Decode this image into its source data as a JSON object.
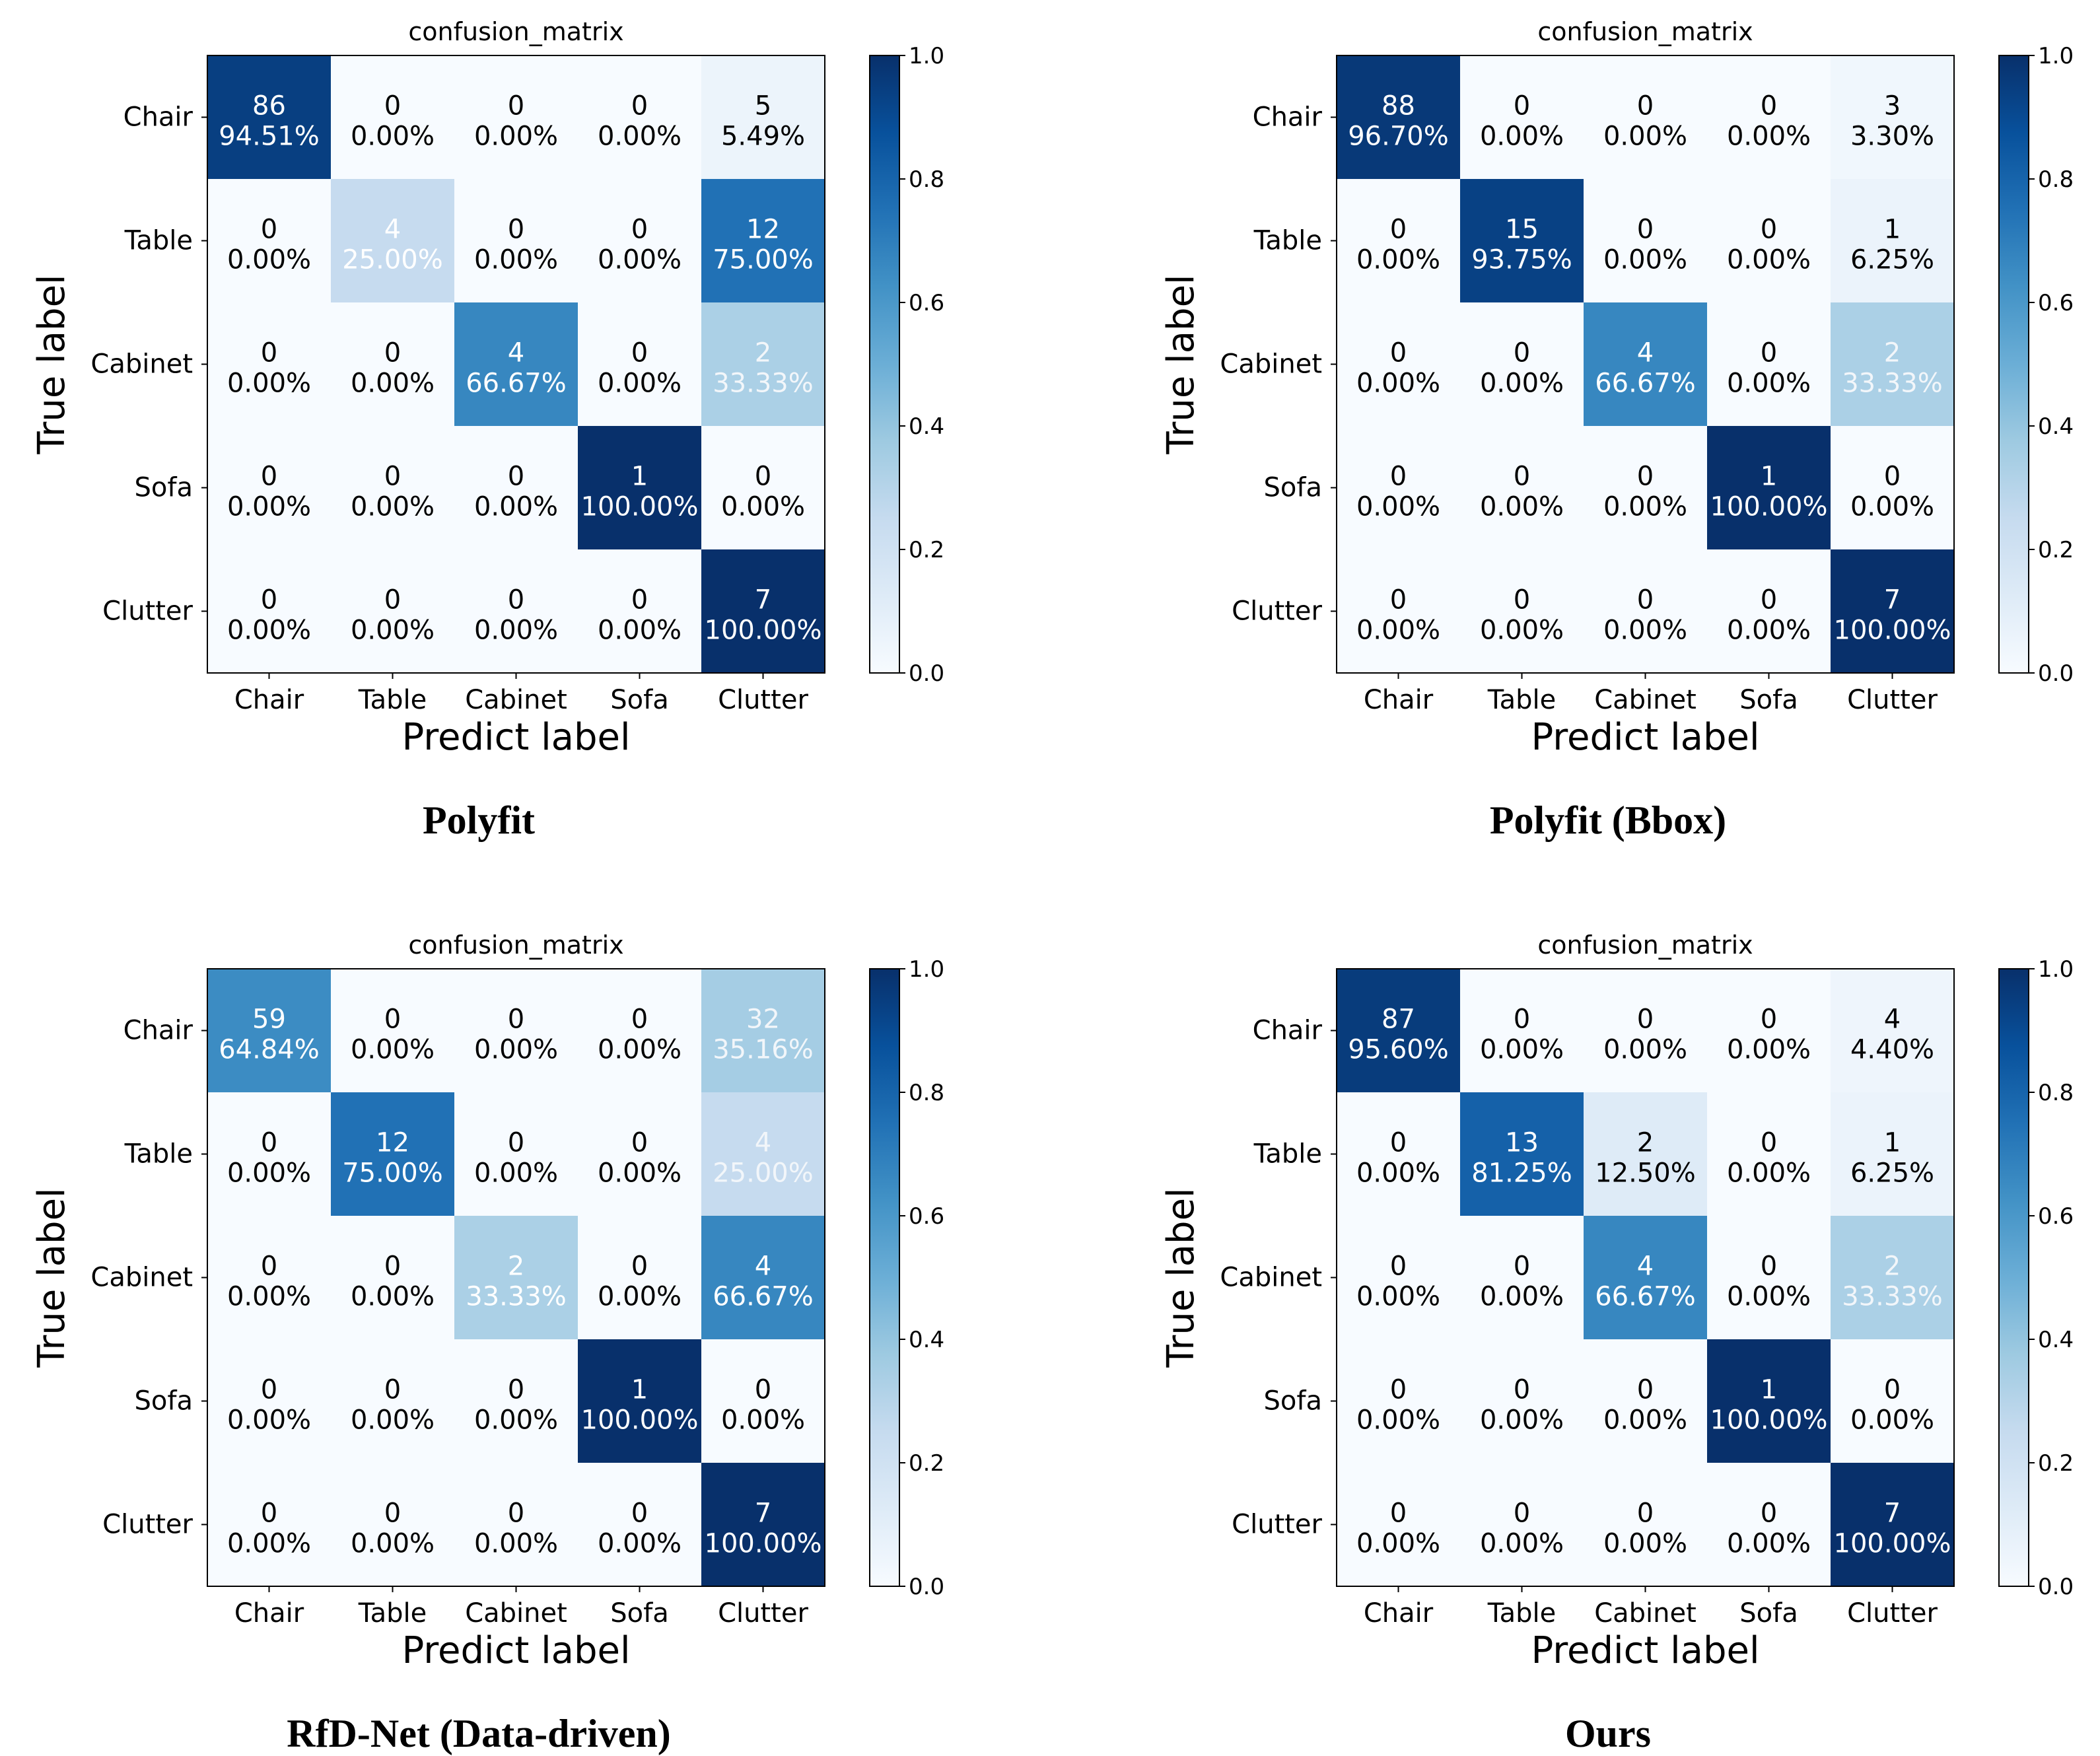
{
  "chart_data": [
    {
      "type": "heatmap",
      "title": "confusion_matrix",
      "caption": "Polyfit",
      "xlabel": "Predict label",
      "ylabel": "True label",
      "row_labels": [
        "Chair",
        "Table",
        "Cabinet",
        "Sofa",
        "Clutter"
      ],
      "col_labels": [
        "Chair",
        "Table",
        "Cabinet",
        "Sofa",
        "Clutter"
      ],
      "counts": [
        [
          86,
          0,
          0,
          0,
          5
        ],
        [
          0,
          4,
          0,
          0,
          12
        ],
        [
          0,
          0,
          4,
          0,
          2
        ],
        [
          0,
          0,
          0,
          1,
          0
        ],
        [
          0,
          0,
          0,
          0,
          7
        ]
      ],
      "percents": [
        [
          "94.51%",
          "0.00%",
          "0.00%",
          "0.00%",
          "5.49%"
        ],
        [
          "0.00%",
          "25.00%",
          "0.00%",
          "0.00%",
          "75.00%"
        ],
        [
          "0.00%",
          "0.00%",
          "66.67%",
          "0.00%",
          "33.33%"
        ],
        [
          "0.00%",
          "0.00%",
          "0.00%",
          "100.00%",
          "0.00%"
        ],
        [
          "0.00%",
          "0.00%",
          "0.00%",
          "0.00%",
          "100.00%"
        ]
      ],
      "colorbar": {
        "range": [
          0.0,
          1.0
        ],
        "ticks": [
          "0.0",
          "0.2",
          "0.4",
          "0.6",
          "0.8",
          "1.0"
        ]
      }
    },
    {
      "type": "heatmap",
      "title": "confusion_matrix",
      "caption": "Polyfit (Bbox)",
      "xlabel": "Predict label",
      "ylabel": "True label",
      "row_labels": [
        "Chair",
        "Table",
        "Cabinet",
        "Sofa",
        "Clutter"
      ],
      "col_labels": [
        "Chair",
        "Table",
        "Cabinet",
        "Sofa",
        "Clutter"
      ],
      "counts": [
        [
          88,
          0,
          0,
          0,
          3
        ],
        [
          0,
          15,
          0,
          0,
          1
        ],
        [
          0,
          0,
          4,
          0,
          2
        ],
        [
          0,
          0,
          0,
          1,
          0
        ],
        [
          0,
          0,
          0,
          0,
          7
        ]
      ],
      "percents": [
        [
          "96.70%",
          "0.00%",
          "0.00%",
          "0.00%",
          "3.30%"
        ],
        [
          "0.00%",
          "93.75%",
          "0.00%",
          "0.00%",
          "6.25%"
        ],
        [
          "0.00%",
          "0.00%",
          "66.67%",
          "0.00%",
          "33.33%"
        ],
        [
          "0.00%",
          "0.00%",
          "0.00%",
          "100.00%",
          "0.00%"
        ],
        [
          "0.00%",
          "0.00%",
          "0.00%",
          "0.00%",
          "100.00%"
        ]
      ],
      "colorbar": {
        "range": [
          0.0,
          1.0
        ],
        "ticks": [
          "0.0",
          "0.2",
          "0.4",
          "0.6",
          "0.8",
          "1.0"
        ]
      }
    },
    {
      "type": "heatmap",
      "title": "confusion_matrix",
      "caption": "RfD-Net (Data-driven)",
      "xlabel": "Predict label",
      "ylabel": "True label",
      "row_labels": [
        "Chair",
        "Table",
        "Cabinet",
        "Sofa",
        "Clutter"
      ],
      "col_labels": [
        "Chair",
        "Table",
        "Cabinet",
        "Sofa",
        "Clutter"
      ],
      "counts": [
        [
          59,
          0,
          0,
          0,
          32
        ],
        [
          0,
          12,
          0,
          0,
          4
        ],
        [
          0,
          0,
          2,
          0,
          4
        ],
        [
          0,
          0,
          0,
          1,
          0
        ],
        [
          0,
          0,
          0,
          0,
          7
        ]
      ],
      "percents": [
        [
          "64.84%",
          "0.00%",
          "0.00%",
          "0.00%",
          "35.16%"
        ],
        [
          "0.00%",
          "75.00%",
          "0.00%",
          "0.00%",
          "25.00%"
        ],
        [
          "0.00%",
          "0.00%",
          "33.33%",
          "0.00%",
          "66.67%"
        ],
        [
          "0.00%",
          "0.00%",
          "0.00%",
          "100.00%",
          "0.00%"
        ],
        [
          "0.00%",
          "0.00%",
          "0.00%",
          "0.00%",
          "100.00%"
        ]
      ],
      "colorbar": {
        "range": [
          0.0,
          1.0
        ],
        "ticks": [
          "0.0",
          "0.2",
          "0.4",
          "0.6",
          "0.8",
          "1.0"
        ]
      }
    },
    {
      "type": "heatmap",
      "title": "confusion_matrix",
      "caption": "Ours",
      "xlabel": "Predict label",
      "ylabel": "True label",
      "row_labels": [
        "Chair",
        "Table",
        "Cabinet",
        "Sofa",
        "Clutter"
      ],
      "col_labels": [
        "Chair",
        "Table",
        "Cabinet",
        "Sofa",
        "Clutter"
      ],
      "counts": [
        [
          87,
          0,
          0,
          0,
          4
        ],
        [
          0,
          13,
          2,
          0,
          1
        ],
        [
          0,
          0,
          4,
          0,
          2
        ],
        [
          0,
          0,
          0,
          1,
          0
        ],
        [
          0,
          0,
          0,
          0,
          7
        ]
      ],
      "percents": [
        [
          "95.60%",
          "0.00%",
          "0.00%",
          "0.00%",
          "4.40%"
        ],
        [
          "0.00%",
          "81.25%",
          "12.50%",
          "0.00%",
          "6.25%"
        ],
        [
          "0.00%",
          "0.00%",
          "66.67%",
          "0.00%",
          "33.33%"
        ],
        [
          "0.00%",
          "0.00%",
          "0.00%",
          "100.00%",
          "0.00%"
        ],
        [
          "0.00%",
          "0.00%",
          "0.00%",
          "0.00%",
          "100.00%"
        ]
      ],
      "colorbar": {
        "range": [
          0.0,
          1.0
        ],
        "ticks": [
          "0.0",
          "0.2",
          "0.4",
          "0.6",
          "0.8",
          "1.0"
        ]
      }
    }
  ]
}
